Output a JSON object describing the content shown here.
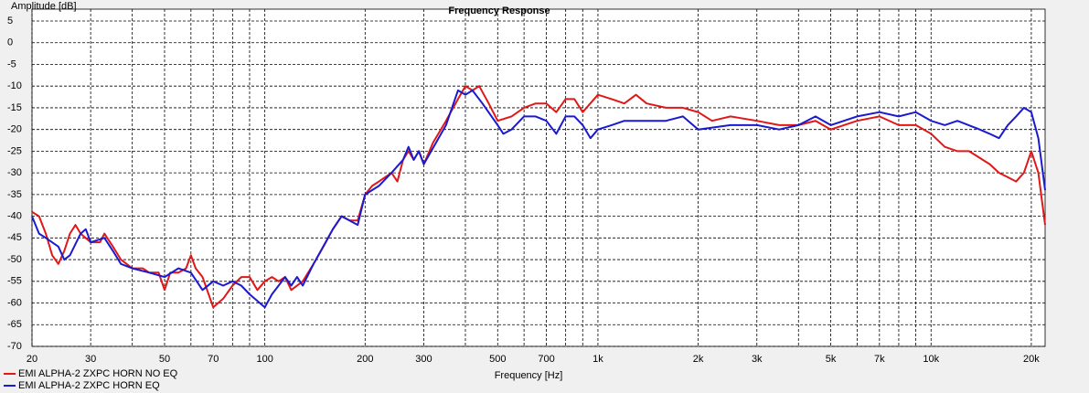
{
  "chart_data": {
    "type": "line",
    "title": "Frequency Response",
    "ylabel": "Amplitude [dB]",
    "xlabel": "Frequency [Hz]",
    "xscale": "log",
    "grid": true,
    "legend": "bottom-left",
    "xlim": [
      20,
      22000
    ],
    "ylim": [
      -70,
      5
    ],
    "yticks": [
      5,
      0,
      -5,
      -10,
      -15,
      -20,
      -25,
      -30,
      -35,
      -40,
      -45,
      -50,
      -55,
      -60,
      -65,
      -70
    ],
    "xticks": [
      20,
      30,
      50,
      70,
      100,
      200,
      300,
      500,
      700,
      {
        "value": 1000,
        "label": "1k"
      },
      {
        "value": 2000,
        "label": "2k"
      },
      {
        "value": 3000,
        "label": "3k"
      },
      {
        "value": 5000,
        "label": "5k"
      },
      {
        "value": 7000,
        "label": "7k"
      },
      {
        "value": 10000,
        "label": "10k"
      },
      {
        "value": 20000,
        "label": "20k"
      }
    ],
    "xminor": [
      40,
      60,
      80,
      90,
      400,
      600,
      800,
      900,
      4000,
      6000,
      8000,
      9000
    ],
    "series": [
      {
        "name": "EMI ALPHA-2 ZXPC HORN NO EQ",
        "color": "#e01818",
        "x": [
          20,
          21,
          22,
          23,
          24,
          25,
          26,
          27,
          28,
          30,
          32,
          33,
          35,
          37,
          40,
          43,
          45,
          48,
          50,
          52,
          55,
          58,
          60,
          62,
          65,
          70,
          75,
          80,
          85,
          90,
          95,
          100,
          105,
          110,
          115,
          120,
          130,
          140,
          150,
          160,
          170,
          180,
          190,
          200,
          210,
          220,
          240,
          250,
          260,
          270,
          280,
          290,
          300,
          320,
          350,
          380,
          400,
          420,
          440,
          470,
          500,
          550,
          600,
          650,
          700,
          750,
          800,
          850,
          900,
          1000,
          1100,
          1200,
          1300,
          1400,
          1600,
          1800,
          2000,
          2200,
          2500,
          3000,
          3500,
          4000,
          4500,
          5000,
          6000,
          7000,
          8000,
          9000,
          10000,
          11000,
          12000,
          13000,
          15000,
          16000,
          17000,
          18000,
          19000,
          20000,
          21000,
          22000
        ],
        "values": [
          -39,
          -40,
          -44,
          -49,
          -51,
          -48,
          -44,
          -42,
          -44,
          -46,
          -46,
          -44,
          -47,
          -50,
          -52,
          -52,
          -53,
          -53,
          -57,
          -53,
          -53,
          -52,
          -49,
          -52,
          -54,
          -61,
          -59,
          -56,
          -54,
          -54,
          -57,
          -55,
          -54,
          -55,
          -54,
          -57,
          -55,
          -51,
          -47,
          -43,
          -40,
          -41,
          -41,
          -35,
          -33,
          -32,
          -30,
          -32,
          -27,
          -25,
          -27,
          -25,
          -28,
          -23,
          -18,
          -13,
          -10,
          -11,
          -10,
          -14,
          -18,
          -17,
          -15,
          -14,
          -14,
          -16,
          -13,
          -13,
          -16,
          -12,
          -13,
          -14,
          -12,
          -14,
          -15,
          -15,
          -16,
          -18,
          -17,
          -18,
          -19,
          -19,
          -18,
          -20,
          -18,
          -17,
          -19,
          -19,
          -21,
          -24,
          -25,
          -25,
          -28,
          -30,
          -31,
          -32,
          -30,
          -25,
          -30,
          -42
        ]
      },
      {
        "name": "EMI ALPHA-2 ZXPC HORN EQ",
        "color": "#1a1ad0",
        "x": [
          20,
          21,
          22,
          24,
          25,
          26,
          28,
          29,
          30,
          33,
          35,
          37,
          40,
          45,
          50,
          55,
          60,
          65,
          70,
          75,
          80,
          85,
          90,
          100,
          105,
          110,
          115,
          120,
          125,
          130,
          140,
          160,
          170,
          190,
          200,
          220,
          240,
          260,
          270,
          280,
          290,
          300,
          350,
          380,
          400,
          420,
          450,
          500,
          520,
          550,
          600,
          650,
          700,
          750,
          800,
          850,
          900,
          950,
          1000,
          1100,
          1200,
          1400,
          1600,
          1800,
          2000,
          2500,
          3000,
          3500,
          4000,
          4500,
          5000,
          6000,
          7000,
          8000,
          9000,
          10000,
          11000,
          12000,
          14000,
          15000,
          16000,
          17000,
          18000,
          19000,
          20000,
          21000,
          22000
        ],
        "values": [
          -40,
          -44,
          -45,
          -47,
          -50,
          -49,
          -44,
          -43,
          -46,
          -45,
          -48,
          -51,
          -52,
          -53,
          -54,
          -52,
          -53,
          -57,
          -55,
          -56,
          -55,
          -56,
          -58,
          -61,
          -58,
          -56,
          -54,
          -56,
          -54,
          -56,
          -51,
          -43,
          -40,
          -42,
          -35,
          -33,
          -30,
          -27,
          -24,
          -27,
          -25,
          -28,
          -19,
          -11,
          -12,
          -11,
          -14,
          -19,
          -21,
          -20,
          -17,
          -17,
          -18,
          -21,
          -17,
          -17,
          -19,
          -22,
          -20,
          -19,
          -18,
          -18,
          -18,
          -17,
          -20,
          -19,
          -19,
          -20,
          -19,
          -17,
          -19,
          -17,
          -16,
          -17,
          -16,
          -18,
          -19,
          -18,
          -20,
          -21,
          -22,
          -19,
          -17,
          -15,
          -16,
          -22,
          -34
        ]
      }
    ]
  }
}
